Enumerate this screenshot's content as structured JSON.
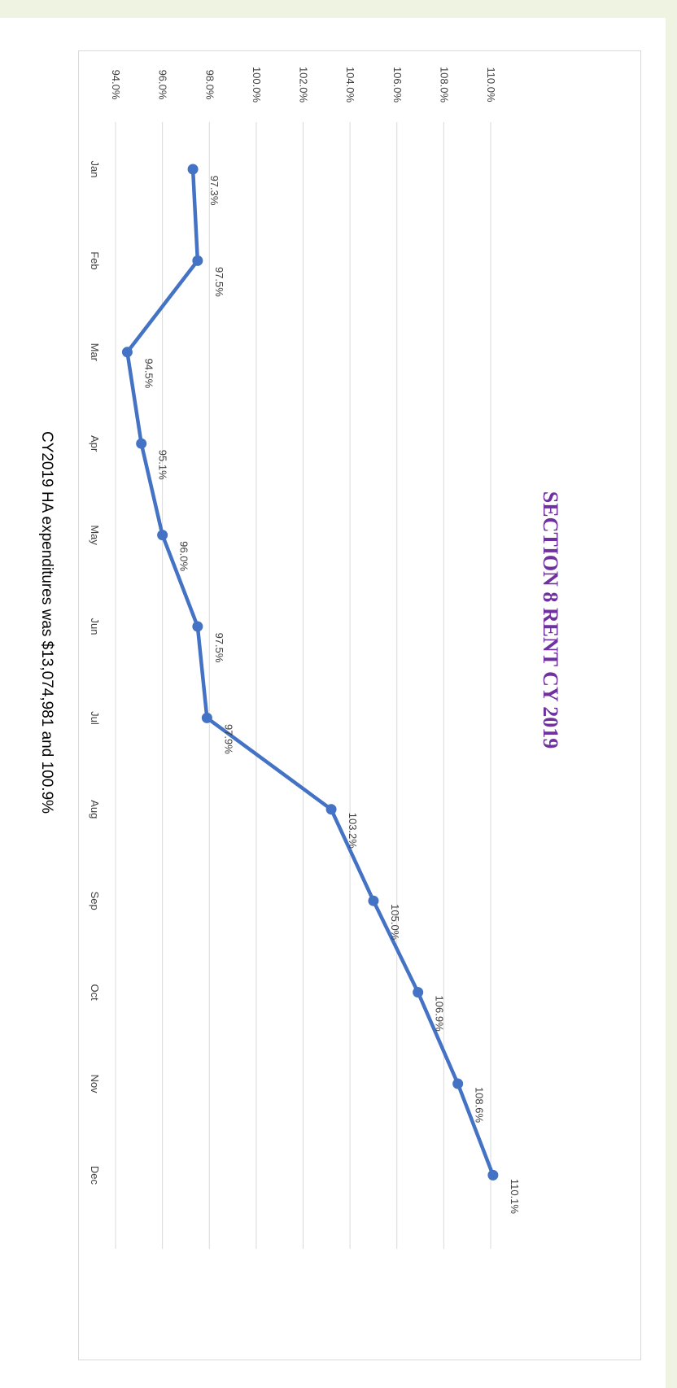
{
  "chart_data": {
    "type": "line",
    "title": "SECTION 8 RENT CY 2019",
    "subtitle": "CY2019 HA expenditures was $13,074,981 and 100.9%",
    "xlabel": "",
    "ylabel": "",
    "categories": [
      "Jan",
      "Feb",
      "Mar",
      "Apr",
      "May",
      "Jun",
      "Jul",
      "Aug",
      "Sep",
      "Oct",
      "Nov",
      "Dec"
    ],
    "series": [
      {
        "values": [
          97.3,
          97.5,
          94.5,
          95.1,
          96.0,
          97.5,
          97.9,
          103.2,
          105.0,
          106.9,
          108.6,
          110.1
        ],
        "labels": [
          "97.3%",
          "97.5%",
          "94.5%",
          "95.1%",
          "96.0%",
          "97.5%",
          "97.9%",
          "103.2%",
          "105.0%",
          "106.9%",
          "108.6%",
          "110.1%"
        ]
      }
    ],
    "ylim": [
      94,
      110
    ],
    "yticks": [
      94,
      96,
      98,
      100,
      102,
      104,
      106,
      108,
      110
    ],
    "ytick_labels": [
      "94.0%",
      "96.0%",
      "98.0%",
      "100.0%",
      "102.0%",
      "104.0%",
      "106.0%",
      "108.0%",
      "110.0%"
    ],
    "grid": true,
    "legend": "none",
    "orientation": "rotated-90-clockwise",
    "colors": {
      "line": "#4472c4",
      "title": "#7030a0",
      "grid": "#d9d9d9",
      "text": "#404040"
    }
  }
}
